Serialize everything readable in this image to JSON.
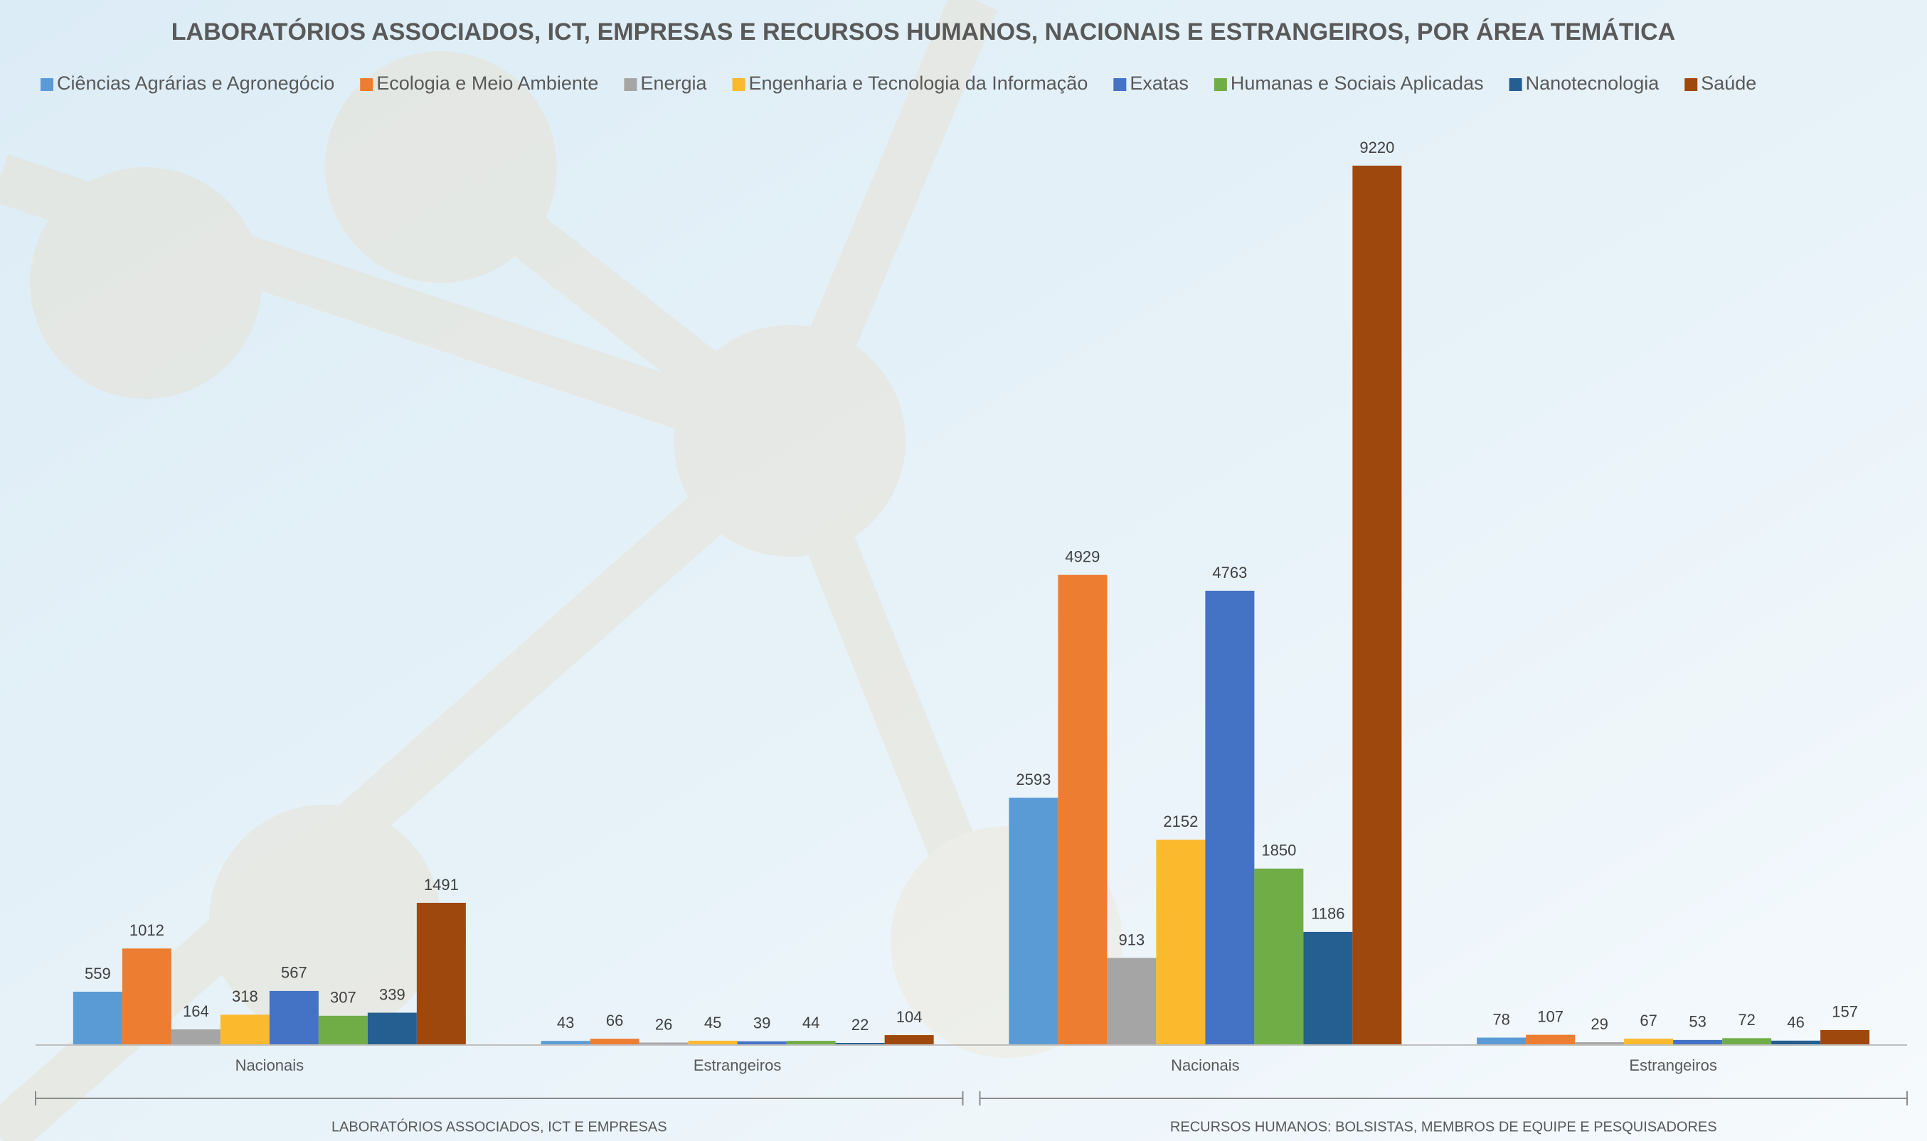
{
  "chart_data": {
    "type": "bar",
    "title": "LABORATÓRIOS ASSOCIADOS, ICT, EMPRESAS E RECURSOS HUMANOS, NACIONAIS E ESTRANGEIROS, POR ÁREA TEMÁTICA",
    "groups": [
      {
        "name": "LABORATÓRIOS ASSOCIADOS, ICT E EMPRESAS",
        "categories": [
          "Nacionais",
          "Estrangeiros"
        ]
      },
      {
        "name": "RECURSOS HUMANOS: BOLSISTAS, MEMBROS DE EQUIPE E PESQUISADORES",
        "categories": [
          "Nacionais",
          "Estrangeiros"
        ]
      }
    ],
    "series": [
      {
        "name": "Ciências Agrárias e Agronegócio",
        "color": "#5B9BD5",
        "values": [
          559,
          43,
          2593,
          78
        ]
      },
      {
        "name": "Ecologia e Meio Ambiente",
        "color": "#ED7D31",
        "values": [
          1012,
          66,
          4929,
          107
        ]
      },
      {
        "name": "Energia",
        "color": "#A5A5A5",
        "values": [
          164,
          26,
          913,
          29
        ]
      },
      {
        "name": "Engenharia e Tecnologia da Informação",
        "color": "#FBBA2E",
        "values": [
          318,
          45,
          2152,
          67
        ]
      },
      {
        "name": "Exatas",
        "color": "#4472C4",
        "values": [
          567,
          39,
          4763,
          53
        ]
      },
      {
        "name": "Humanas e Sociais Aplicadas",
        "color": "#70AD47",
        "values": [
          307,
          44,
          1850,
          72
        ]
      },
      {
        "name": "Nanotecnologia",
        "color": "#255E91",
        "values": [
          339,
          22,
          1186,
          46
        ]
      },
      {
        "name": "Saúde",
        "color": "#9E480E",
        "values": [
          1491,
          104,
          9220,
          157
        ]
      }
    ],
    "legend": "top",
    "grid": false
  }
}
